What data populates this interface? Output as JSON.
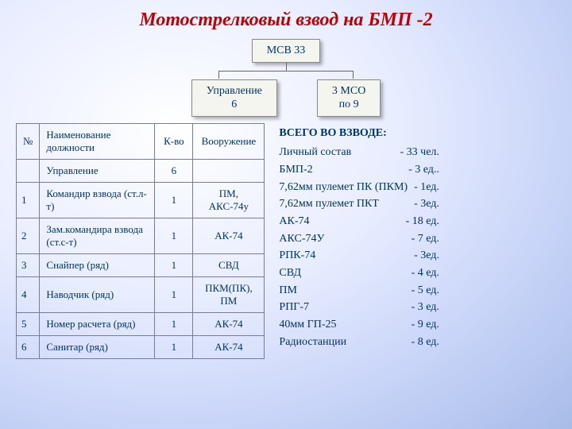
{
  "title": "Мотострелковый взвод на БМП -2",
  "org": {
    "top": "МСВ 33",
    "left_l1": "Управление",
    "left_l2": "6",
    "right_l1": "3 МСО",
    "right_l2": "по 9"
  },
  "table": {
    "headers": {
      "num": "№",
      "name": "Наименование должности",
      "qty": "К-во",
      "arm": "Вооружение"
    },
    "section": {
      "name": "Управление",
      "qty": "6"
    },
    "rows": [
      {
        "num": "1",
        "name": "Командир взвода (ст.л-т)",
        "qty": "1",
        "arm": "ПМ, АКС-74у"
      },
      {
        "num": "2",
        "name": "Зам.командира взвода (ст.с-т)",
        "qty": "1",
        "arm": "АК-74"
      },
      {
        "num": "3",
        "name": "Снайпер (ряд)",
        "qty": "1",
        "arm": "СВД"
      },
      {
        "num": "4",
        "name": "Наводчик (ряд)",
        "qty": "1",
        "arm": "ПКМ(ПК), ПМ"
      },
      {
        "num": "5",
        "name": "Номер расчета (ряд)",
        "qty": "1",
        "arm": "АК-74"
      },
      {
        "num": "6",
        "name": "Санитар (ряд)",
        "qty": "1",
        "arm": "АК-74"
      }
    ]
  },
  "totals": {
    "heading": "ВСЕГО ВО ВЗВОДЕ:",
    "items": [
      {
        "label": "Личный состав",
        "value": "- 33 чел."
      },
      {
        "label": "БМП-2",
        "value": "- 3 ед.."
      },
      {
        "label": "7,62мм пулемет ПК (ПКМ)",
        "value": "- 1ед."
      },
      {
        "label": "7,62мм пулемет ПКТ",
        "value": "- 3ед."
      },
      {
        "label": "АК-74",
        "value": "- 18 ед."
      },
      {
        "label": "АКС-74У",
        "value": "- 7 ед."
      },
      {
        "label": "РПК-74",
        "value": "- 3ед."
      },
      {
        "label": "СВД",
        "value": "- 4 ед."
      },
      {
        "label": "ПМ",
        "value": "- 5 ед."
      },
      {
        "label": "РПГ-7",
        "value": "- 3 ед."
      },
      {
        "label": "40мм ГП-25",
        "value": "- 9 ед."
      },
      {
        "label": "Радиостанции",
        "value": "- 8 ед."
      }
    ]
  },
  "styling": {
    "title_color": "#c00000",
    "text_color": "#003366",
    "border_color": "#7a7a9a",
    "box_bg": "#f5f5f0",
    "bg_gradient": [
      "#ffffff",
      "#e8edff",
      "#c8d4f8",
      "#a8bce8"
    ],
    "title_fontsize": 24,
    "table_fontsize": 13,
    "totals_fontsize": 14
  }
}
